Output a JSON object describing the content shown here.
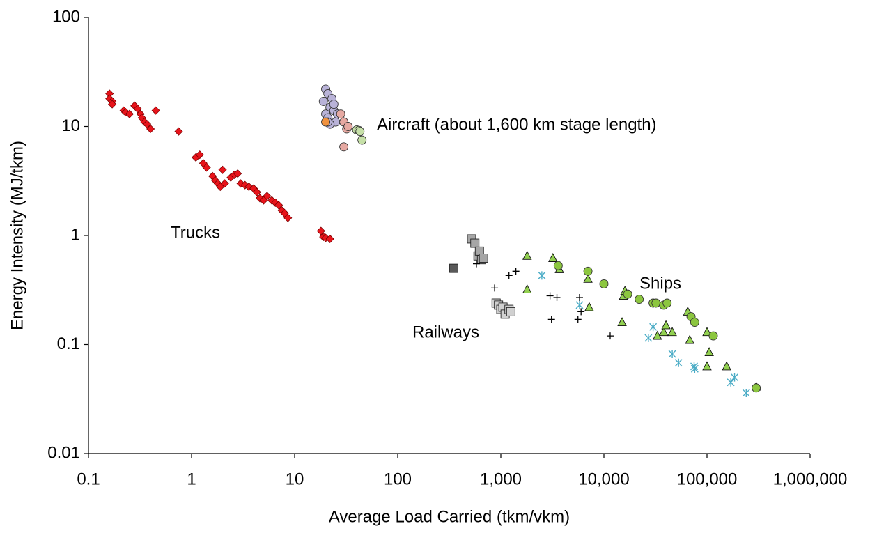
{
  "chart_data": {
    "type": "scatter",
    "xlabel": "Average Load Carried (tkm/vkm)",
    "ylabel": "Energy Intensity (MJ/tkm)",
    "xscale": "log",
    "yscale": "log",
    "grid": false,
    "xlim": [
      0.1,
      1000000
    ],
    "ylim": [
      0.01,
      100
    ],
    "xticks": [
      0.1,
      1,
      10,
      100,
      {
        "value": 1000,
        "label": "1,000"
      },
      {
        "value": 10000,
        "label": "10,000"
      },
      {
        "value": 100000,
        "label": "100,000"
      },
      {
        "value": 1000000,
        "label": "1,000,000"
      }
    ],
    "yticks": [
      0.01,
      0.1,
      1,
      10,
      100
    ],
    "annotations": [
      "Trucks",
      "Aircraft (about 1,600 km stage length)",
      "Railways",
      "Ships"
    ],
    "series": [
      {
        "color": "#e8141b",
        "marker": "diamond",
        "x": [
          0.16,
          0.16,
          0.17,
          0.17,
          0.22,
          0.23,
          0.25,
          0.28,
          0.3,
          0.32,
          0.33,
          0.35,
          0.37,
          0.4,
          0.45,
          0.75,
          1.1,
          1.2,
          1.3,
          1.4,
          1.6,
          1.7,
          1.8,
          1.9,
          2.0,
          2.1,
          2.4,
          2.6,
          2.8,
          3.0,
          3.3,
          3.6,
          4.0,
          4.3,
          4.6,
          5.0,
          5.4,
          6.0,
          6.5,
          7.0,
          7.5,
          8.0,
          8.6,
          18,
          19,
          20,
          22
        ],
        "y": [
          20,
          18,
          17,
          16,
          14,
          13.5,
          13,
          15.5,
          14.5,
          13,
          12,
          11,
          10.5,
          9.5,
          14,
          9,
          5.2,
          5.5,
          4.6,
          4.2,
          3.5,
          3.2,
          3.0,
          2.8,
          4.0,
          3.0,
          3.4,
          3.6,
          3.7,
          3.0,
          2.9,
          2.8,
          2.7,
          2.5,
          2.2,
          2.1,
          2.3,
          2.1,
          2.0,
          1.9,
          1.7,
          1.6,
          1.45,
          1.1,
          0.97,
          0.95,
          0.93
        ]
      },
      {
        "color": "#b9b3d8",
        "marker": "circle",
        "x": [
          19,
          20,
          21,
          22,
          20,
          21,
          23,
          24,
          25,
          22,
          26,
          24,
          21
        ],
        "y": [
          17,
          22,
          20,
          15,
          13,
          12,
          18,
          14,
          11,
          10.5,
          13,
          16,
          11
        ]
      },
      {
        "color": "#e6a9a2",
        "marker": "circle",
        "x": [
          28,
          30,
          32,
          30,
          33
        ],
        "y": [
          13,
          11,
          9.5,
          6.5,
          10
        ]
      },
      {
        "color": "#f0923f",
        "marker": "circle",
        "x": [
          20
        ],
        "y": [
          11
        ]
      },
      {
        "color": "#c6e0a8",
        "marker": "circle",
        "x": [
          40,
          42,
          43,
          45
        ],
        "y": [
          9.3,
          9.2,
          9,
          7.5
        ]
      },
      {
        "color": "#d0d0d0",
        "marker": "square",
        "x": [
          900,
          950,
          1000,
          1050,
          1100,
          1200,
          1250
        ],
        "y": [
          0.24,
          0.23,
          0.21,
          0.22,
          0.19,
          0.21,
          0.2
        ]
      },
      {
        "color": "#a6a6a6",
        "marker": "square",
        "x": [
          520,
          560,
          600,
          620,
          650,
          680
        ],
        "y": [
          0.93,
          0.85,
          0.65,
          0.72,
          0.6,
          0.62
        ]
      },
      {
        "color": "#595959",
        "marker": "square",
        "x": [
          350
        ],
        "y": [
          0.5
        ]
      },
      {
        "color": "#000000",
        "marker": "plus",
        "x": [
          580,
          870,
          1200,
          1400,
          3000,
          3500,
          5800,
          6000,
          5600,
          3100,
          11500
        ],
        "y": [
          0.55,
          0.33,
          0.43,
          0.47,
          0.28,
          0.27,
          0.27,
          0.2,
          0.17,
          0.17,
          0.12
        ]
      },
      {
        "color": "#92d050",
        "marker": "triangle",
        "x": [
          1800,
          1800,
          3200,
          3700,
          7000,
          7200,
          15000,
          15500,
          16000,
          33000,
          38000,
          40000,
          46000,
          65000,
          68000,
          100000,
          100000,
          105000,
          155000,
          300000
        ],
        "y": [
          0.65,
          0.32,
          0.62,
          0.49,
          0.4,
          0.22,
          0.16,
          0.28,
          0.31,
          0.12,
          0.13,
          0.15,
          0.13,
          0.2,
          0.11,
          0.13,
          0.063,
          0.085,
          0.063,
          0.041
        ]
      },
      {
        "color": "#8cc63f",
        "marker": "circle",
        "x": [
          3600,
          7000,
          10000,
          17000,
          22000,
          30000,
          32000,
          38000,
          41000,
          70000,
          76000,
          115000,
          300000
        ],
        "y": [
          0.53,
          0.47,
          0.36,
          0.29,
          0.26,
          0.24,
          0.24,
          0.23,
          0.24,
          0.18,
          0.16,
          0.12,
          0.04
        ]
      },
      {
        "color": "#4bacc6",
        "marker": "asterisk",
        "x": [
          2500,
          5800,
          27000,
          30000,
          46000,
          53000,
          75000,
          76000,
          170000,
          185000,
          240000
        ],
        "y": [
          0.43,
          0.23,
          0.115,
          0.145,
          0.082,
          0.068,
          0.063,
          0.06,
          0.045,
          0.05,
          0.036
        ]
      }
    ]
  }
}
